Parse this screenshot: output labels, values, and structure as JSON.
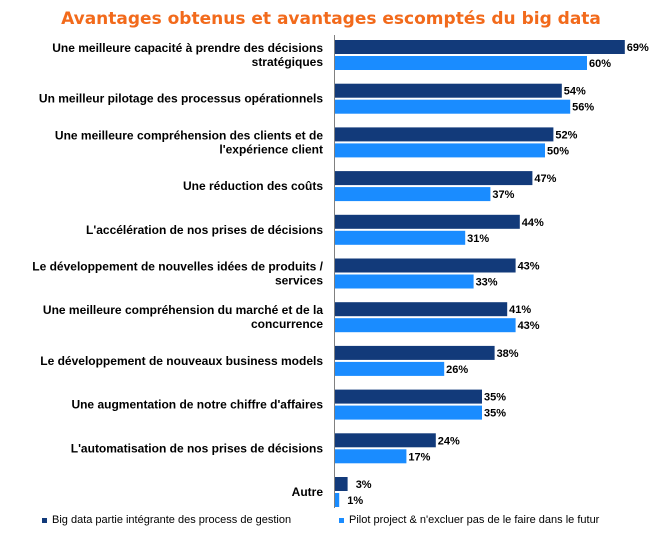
{
  "chart_data": {
    "type": "bar",
    "orientation": "horizontal",
    "title": "Avantages obtenus et avantages escomptés du big data",
    "categories": [
      [
        "Une meilleure capacité à prendre des décisions",
        "stratégiques"
      ],
      [
        "Un meilleur pilotage des processus opérationnels"
      ],
      [
        "Une meilleure compréhension des clients et de",
        "l'expérience client"
      ],
      [
        "Une réduction des coûts"
      ],
      [
        "L'accélération de nos prises de décisions"
      ],
      [
        "Le développement de nouvelles idées de produits /",
        "services"
      ],
      [
        "Une meilleure compréhension du marché et de la",
        "concurrence"
      ],
      [
        "Le développement de nouveaux business models"
      ],
      [
        "Une augmentation de notre chiffre d'affaires"
      ],
      [
        "L'automatisation de nos prises de décisions"
      ],
      [
        "Autre"
      ]
    ],
    "series": [
      {
        "name": "Big data partie intégrante des process de gestion",
        "color": "#123a7a",
        "values": [
          69,
          54,
          52,
          47,
          44,
          43,
          41,
          38,
          35,
          24,
          3
        ],
        "labels": [
          "69%",
          "54%",
          "52%",
          "47%",
          "44%",
          "43%",
          "41%",
          "38%",
          "35%",
          "24%",
          "3%"
        ]
      },
      {
        "name": "Pilot project & n'excluer pas de le faire dans le futur",
        "color": "#1a8cff",
        "values": [
          60,
          56,
          50,
          37,
          31,
          33,
          43,
          26,
          35,
          17,
          1
        ],
        "labels": [
          "60%",
          "56%",
          "50%",
          "37%",
          "31%",
          "33%",
          "43%",
          "26%",
          "35%",
          "17%",
          "1%"
        ]
      }
    ],
    "xlim": [
      0,
      70
    ],
    "unit": "%",
    "grid": false,
    "legend_position": "bottom"
  }
}
